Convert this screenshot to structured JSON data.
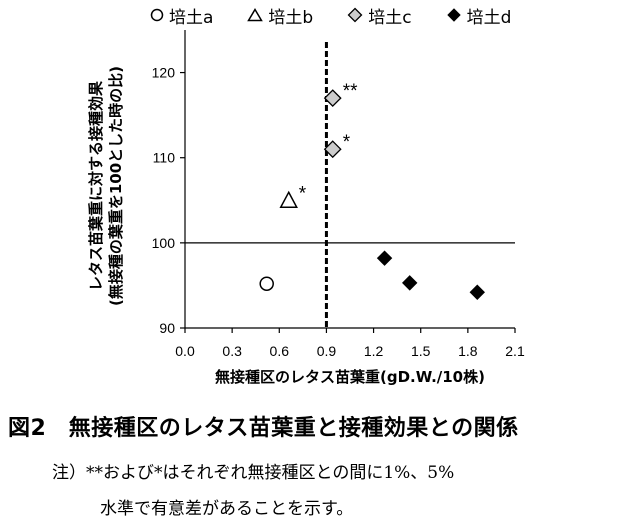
{
  "chart_data": {
    "type": "scatter",
    "ylabel_lines": [
      "レタス苗葉重に対する接種効果",
      "(無接種の葉重を100とした時の比)"
    ],
    "xlabel": "無接種区のレタス苗葉重(gD.W./10株)",
    "xlim": [
      0.0,
      2.1
    ],
    "ylim": [
      90,
      125
    ],
    "xticks": [
      "0.0",
      "0.3",
      "0.6",
      "0.9",
      "1.2",
      "1.5",
      "1.8",
      "2.1"
    ],
    "yticks": [
      "90",
      "100",
      "110",
      "120"
    ],
    "reference_lines": {
      "vertical_x": 0.9,
      "horizontal_y": 100
    },
    "series": [
      {
        "name": "培土a",
        "marker": "circle",
        "points": [
          {
            "x": 0.52,
            "y": 95.2,
            "label": ""
          }
        ]
      },
      {
        "name": "培土b",
        "marker": "triangle",
        "points": [
          {
            "x": 0.66,
            "y": 105.0,
            "label": "*"
          }
        ]
      },
      {
        "name": "培土c",
        "marker": "diamond",
        "points": [
          {
            "x": 0.94,
            "y": 117.0,
            "label": "**"
          },
          {
            "x": 0.94,
            "y": 111.0,
            "label": "*"
          }
        ]
      },
      {
        "name": "培土d",
        "marker": "filled-diamond",
        "points": [
          {
            "x": 1.27,
            "y": 98.2,
            "label": ""
          },
          {
            "x": 1.43,
            "y": 95.3,
            "label": ""
          },
          {
            "x": 1.86,
            "y": 94.2,
            "label": ""
          }
        ]
      }
    ]
  },
  "caption": "図2　無接種区のレタス苗葉重と接種効果との関係",
  "note_line1": "注）**および*はそれぞれ無接種区との間に1%、5%",
  "note_line2": "水準で有意差があることを示す。"
}
